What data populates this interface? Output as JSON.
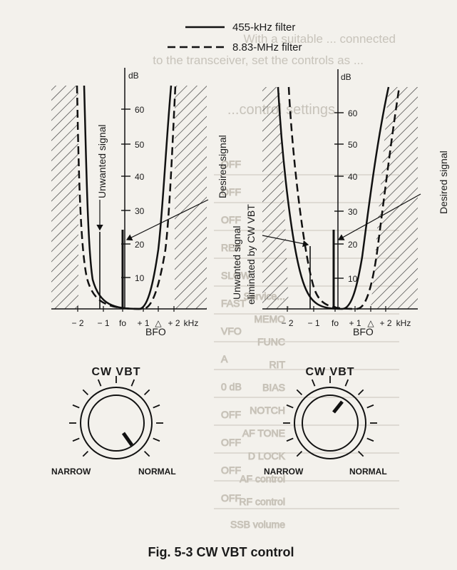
{
  "legend": {
    "solid_label": "455-kHz filter",
    "dashed_label": "8.83-MHz filter"
  },
  "bleed_through": {
    "line1": "With a suitable ... connected",
    "line2": "to the transceiver, set the controls as ...",
    "heading": "...control settings",
    "table_left": [
      "OFF",
      "OFF",
      "OFF",
      "REF",
      "SLOW",
      "FAST",
      "VFO",
      "A",
      "0 dB",
      "OFF",
      "OFF",
      "OFF",
      "OFF"
    ],
    "table_right": [
      "Service...",
      "MEMO",
      "FUNC",
      "RIT",
      "BIAS",
      "NOTCH",
      "AF TONE",
      "D LOCK",
      "AF control",
      "RF control",
      "SSB volume"
    ]
  },
  "graphs": [
    {
      "db_unit": "dB",
      "db_ticks": [
        "60",
        "50",
        "40",
        "30",
        "20",
        "10"
      ],
      "x_ticks": [
        "− 2",
        "− 1",
        "fo",
        "+ 1",
        "△",
        "+ 2",
        "kHz"
      ],
      "x_sub": "BFO",
      "unwanted_label": "Unwanted signal",
      "desired_label": "Desired signal"
    },
    {
      "db_unit": "dB",
      "db_ticks": [
        "60",
        "50",
        "40",
        "30",
        "20",
        "10"
      ],
      "x_ticks": [
        "− 2",
        "− 1",
        "fo",
        "+ 1",
        "△",
        "+ 2",
        "kHz"
      ],
      "x_sub": "BFO",
      "unwanted_label_line1": "Unwanted signal",
      "unwanted_label_line2": "eliminated by CW VBT",
      "desired_label": "Desired signal"
    }
  ],
  "knobs": [
    {
      "title": "CW  VBT",
      "left": "NARROW",
      "right": "NORMAL",
      "position": "normal"
    },
    {
      "title": "CW  VBT",
      "left": "NARROW",
      "right": "NORMAL",
      "position": "toward narrow"
    }
  ],
  "caption": "Fig. 5-3  CW VBT control"
}
